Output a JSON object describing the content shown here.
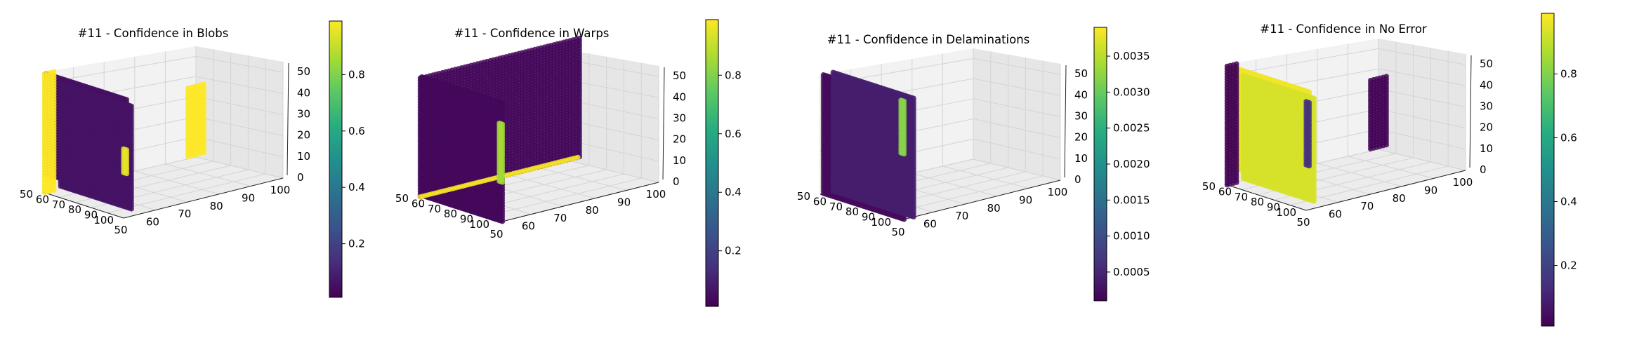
{
  "figure": {
    "colormap": "viridis"
  },
  "chart_data": [
    {
      "type": "scatter",
      "subtype": "scatter3d",
      "title": "#11 - Confidence in Blobs",
      "xlabel": "",
      "ylabel": "",
      "zlabel": "",
      "x_ticks": [
        "50",
        "60",
        "70",
        "80",
        "90",
        "100"
      ],
      "y_ticks": [
        "50",
        "60",
        "70",
        "80",
        "90",
        "100"
      ],
      "z_ticks": [
        "0",
        "10",
        "20",
        "30",
        "40",
        "50"
      ],
      "xlim": [
        50,
        100
      ],
      "ylim": [
        50,
        100
      ],
      "zlim": [
        0,
        55
      ],
      "colorbar": {
        "ticks": [
          "0.2",
          "0.4",
          "0.6",
          "0.8"
        ],
        "range": [
          0.01,
          0.99
        ]
      },
      "point_groups": [
        {
          "face": "back",
          "x": [
            50,
            100
          ],
          "z": [
            8,
            55
          ],
          "value": 0.05
        },
        {
          "face": "front",
          "x": [
            53,
            97
          ],
          "z": [
            2,
            50
          ],
          "value": 0.06
        },
        {
          "face": "side",
          "y": [
            50,
            53
          ],
          "z": [
            0,
            55
          ],
          "value": 0.99
        },
        {
          "face": "side",
          "y": [
            95,
            100
          ],
          "z": [
            0,
            32
          ],
          "value": 0.99
        },
        {
          "face": "back-edge",
          "x": [
            98,
            100
          ],
          "z": [
            20,
            32
          ],
          "value": 0.95
        }
      ]
    },
    {
      "type": "scatter",
      "subtype": "scatter3d",
      "title": "#11 - Confidence in Warps",
      "xlabel": "",
      "ylabel": "",
      "zlabel": "",
      "x_ticks": [
        "50",
        "60",
        "70",
        "80",
        "90",
        "100"
      ],
      "y_ticks": [
        "50",
        "60",
        "70",
        "80",
        "90",
        "100"
      ],
      "z_ticks": [
        "0",
        "10",
        "20",
        "30",
        "40",
        "50"
      ],
      "xlim": [
        50,
        100
      ],
      "ylim": [
        50,
        100
      ],
      "zlim": [
        0,
        55
      ],
      "colorbar": {
        "ticks": [
          "0.2",
          "0.4",
          "0.6",
          "0.8"
        ],
        "range": [
          0.01,
          0.99
        ]
      },
      "point_groups": [
        {
          "face": "back",
          "x": [
            50,
            100
          ],
          "z": [
            0,
            55
          ],
          "value": 0.03
        },
        {
          "face": "side",
          "y": [
            50,
            100
          ],
          "z": [
            0,
            55
          ],
          "value": 0.03
        },
        {
          "face": "bottom-edge",
          "y": [
            50,
            100
          ],
          "z": [
            0,
            2
          ],
          "value": 0.98
        },
        {
          "face": "back-edge",
          "x": [
            98,
            100
          ],
          "z": [
            18,
            45
          ],
          "value": 0.85
        }
      ]
    },
    {
      "type": "scatter",
      "subtype": "scatter3d",
      "title": "#11 - Confidence in Delaminations",
      "xlabel": "",
      "ylabel": "",
      "zlabel": "",
      "x_ticks": [
        "50",
        "60",
        "70",
        "80",
        "90",
        "100"
      ],
      "y_ticks": [
        "50",
        "60",
        "70",
        "80",
        "90",
        "100"
      ],
      "z_ticks": [
        "0",
        "10",
        "20",
        "30",
        "40",
        "50"
      ],
      "xlim": [
        50,
        100
      ],
      "ylim": [
        50,
        100
      ],
      "zlim": [
        0,
        55
      ],
      "colorbar": {
        "ticks": [
          "0.0005",
          "0.0010",
          "0.0015",
          "0.0020",
          "0.0025",
          "0.0030",
          "0.0035"
        ],
        "range": [
          0.0001,
          0.0039
        ]
      },
      "point_groups": [
        {
          "face": "back",
          "x": [
            50,
            100
          ],
          "z": [
            0,
            55
          ],
          "value": 0.0002
        },
        {
          "face": "front",
          "x": [
            50,
            100
          ],
          "z": [
            0,
            55
          ],
          "value": 0.0004
        },
        {
          "face": "back-edge",
          "x": [
            98,
            100
          ],
          "z": [
            30,
            55
          ],
          "value": 0.0032
        }
      ]
    },
    {
      "type": "scatter",
      "subtype": "scatter3d",
      "title": "#11 - Confidence in No Error",
      "xlabel": "",
      "ylabel": "",
      "zlabel": "",
      "x_ticks": [
        "50",
        "60",
        "70",
        "80",
        "90",
        "100"
      ],
      "y_ticks": [
        "50",
        "60",
        "70",
        "80",
        "90",
        "100"
      ],
      "z_ticks": [
        "0",
        "10",
        "20",
        "30",
        "40",
        "50"
      ],
      "xlim": [
        50,
        100
      ],
      "ylim": [
        50,
        100
      ],
      "zlim": [
        0,
        55
      ],
      "colorbar": {
        "ticks": [
          "0.2",
          "0.4",
          "0.6",
          "0.8"
        ],
        "range": [
          0.01,
          0.99
        ]
      },
      "point_groups": [
        {
          "face": "back",
          "x": [
            50,
            100
          ],
          "z": [
            8,
            55
          ],
          "value": 0.97
        },
        {
          "face": "front",
          "x": [
            53,
            97
          ],
          "z": [
            2,
            50
          ],
          "value": 0.93
        },
        {
          "face": "side",
          "y": [
            50,
            53
          ],
          "z": [
            0,
            55
          ],
          "value": 0.02
        },
        {
          "face": "side",
          "y": [
            95,
            100
          ],
          "z": [
            0,
            32
          ],
          "value": 0.02
        },
        {
          "face": "back-edge",
          "x": [
            98,
            100
          ],
          "z": [
            20,
            50
          ],
          "value": 0.15
        }
      ]
    }
  ]
}
